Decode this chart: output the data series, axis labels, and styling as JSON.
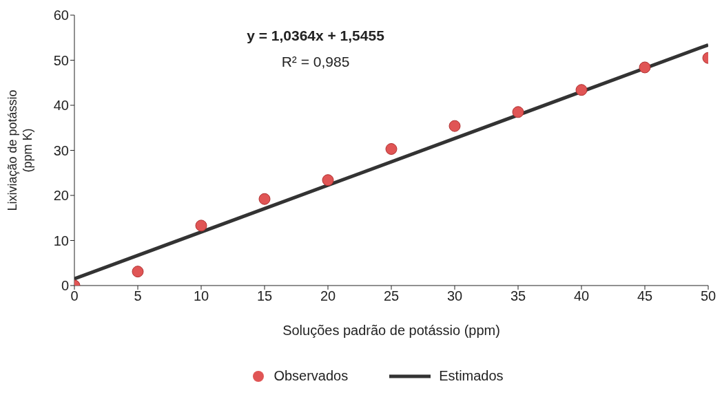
{
  "chart_data": {
    "type": "scatter",
    "xlabel": "Soluções padrão de potássio (ppm)",
    "ylabel": "Lixiviação de potássio\n(ppm K)",
    "xlim": [
      0,
      50
    ],
    "xticks": [
      0,
      5,
      10,
      15,
      20,
      25,
      30,
      35,
      40,
      45,
      50
    ],
    "ylim": [
      0,
      60
    ],
    "yticks": [
      0,
      10,
      20,
      30,
      40,
      50,
      60
    ],
    "series": [
      {
        "name": "Observados",
        "color": "#e05555",
        "marker": "circle",
        "x": [
          0,
          5,
          10,
          15,
          20,
          25,
          30,
          35,
          40,
          45,
          50
        ],
        "values": [
          0,
          3.1,
          13.3,
          19.2,
          23.4,
          30.3,
          35.4,
          38.5,
          43.4,
          48.4,
          50.5
        ]
      },
      {
        "name": "Estimados",
        "type": "line",
        "color": "#333333",
        "marker": "none",
        "line_style": "solid",
        "x": [
          0,
          50
        ],
        "values": [
          1.5,
          53.4
        ]
      }
    ],
    "annotations": [
      "y = 1,0364x + 1,5455",
      "R² = 0,985"
    ],
    "grid": false,
    "legend": "bottom"
  }
}
